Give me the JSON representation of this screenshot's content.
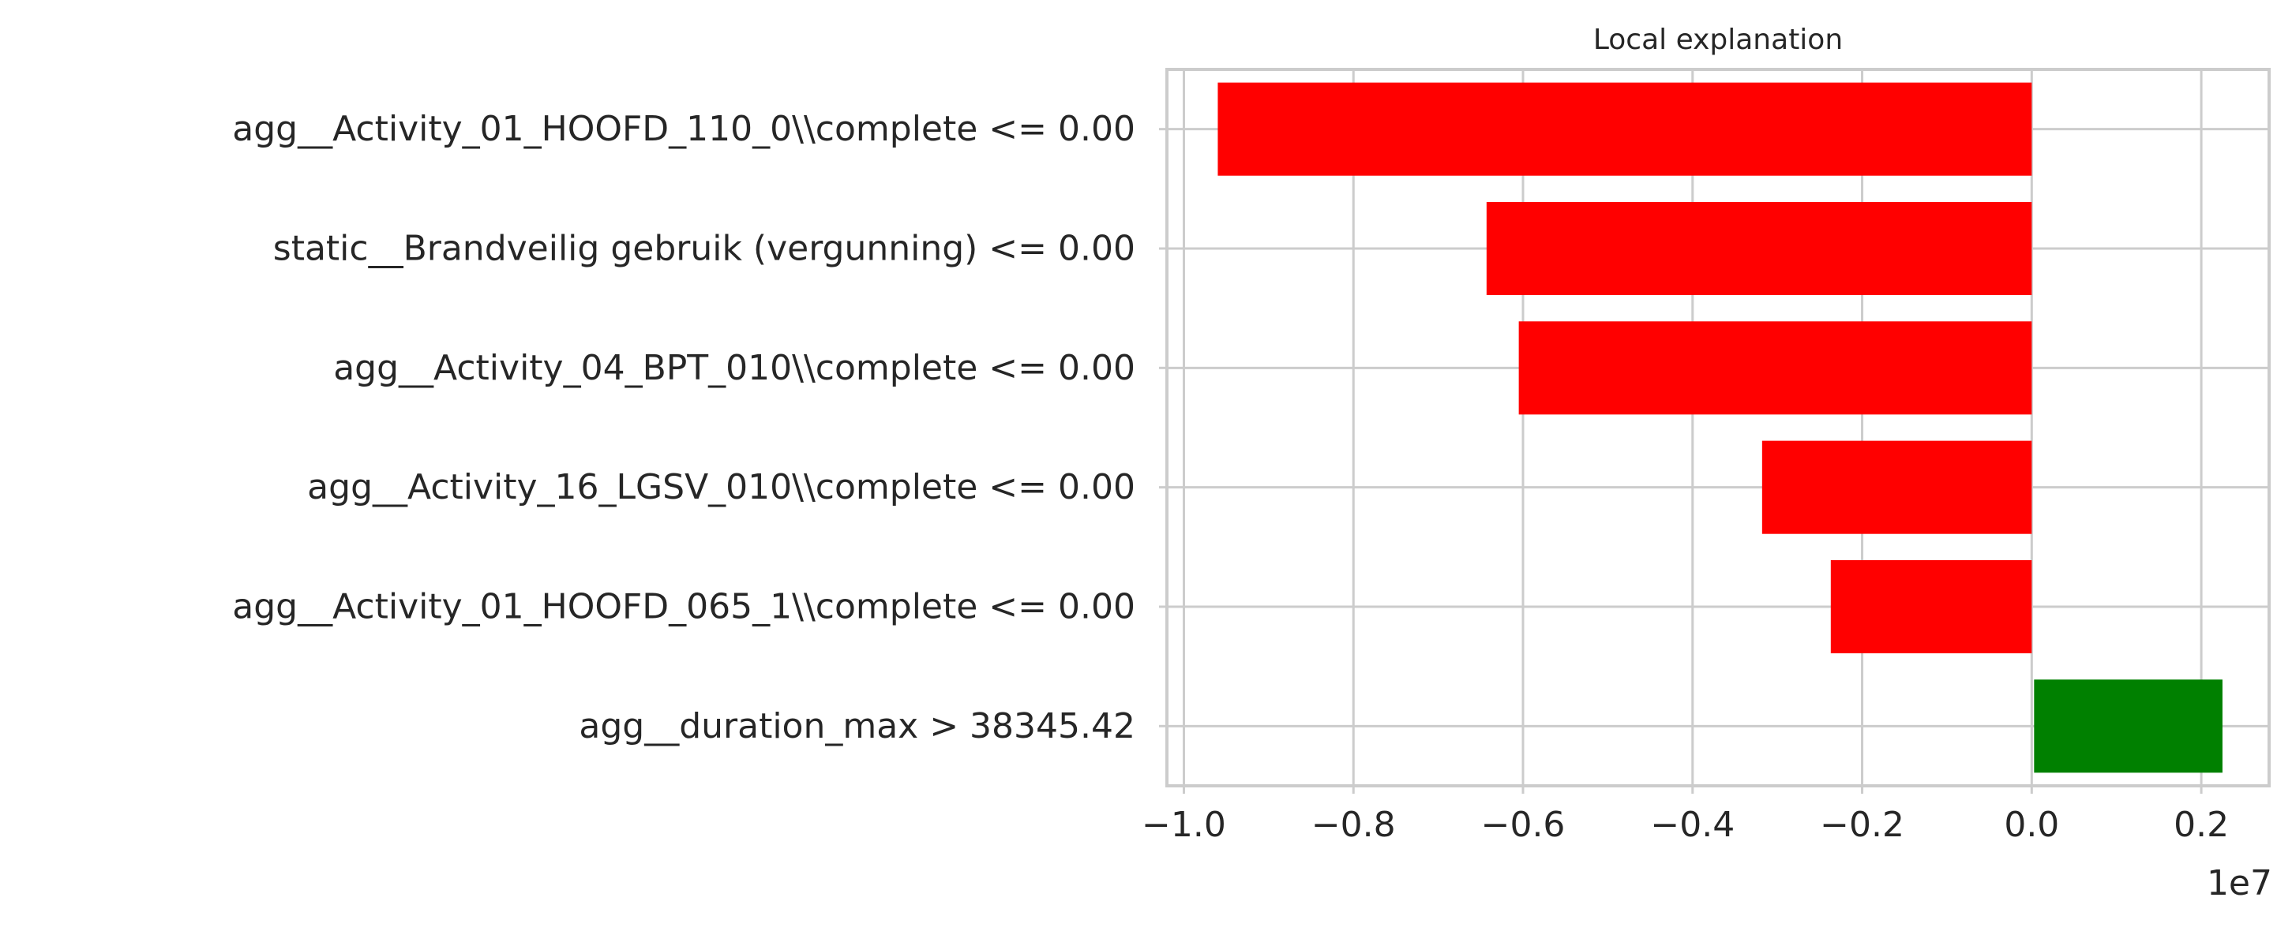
{
  "chart_data": {
    "type": "bar",
    "orientation": "horizontal",
    "title": "Local explanation",
    "xlabel": "",
    "ylabel": "",
    "x_offset_label": "1e7",
    "xlim": [
      -1.02,
      0.28
    ],
    "x_scale_exponent": 7,
    "x_ticks": [
      -1.0,
      -0.8,
      -0.6,
      -0.4,
      -0.2,
      0.0,
      0.2
    ],
    "x_tick_labels": [
      "−1.0",
      "−0.8",
      "−0.6",
      "−0.4",
      "−0.2",
      "0.0",
      "0.2"
    ],
    "grid": true,
    "legend": "none",
    "colors": {
      "negative": "#ff0000",
      "positive": "#008000",
      "grid": "#cccccc",
      "text": "#262626"
    },
    "categories": [
      "agg__Activity_01_HOOFD_110_0\\\\complete <= 0.00",
      "static__Brandveilig gebruik (vergunning) <= 0.00",
      "agg__Activity_04_BPT_010\\\\complete <= 0.00",
      "agg__Activity_16_LGSV_010\\\\complete <= 0.00",
      "agg__Activity_01_HOOFD_065_1\\\\complete <= 0.00",
      "agg__duration_max > 38345.42"
    ],
    "values": [
      -0.96,
      -0.643,
      -0.605,
      -0.318,
      -0.237,
      0.225
    ]
  }
}
